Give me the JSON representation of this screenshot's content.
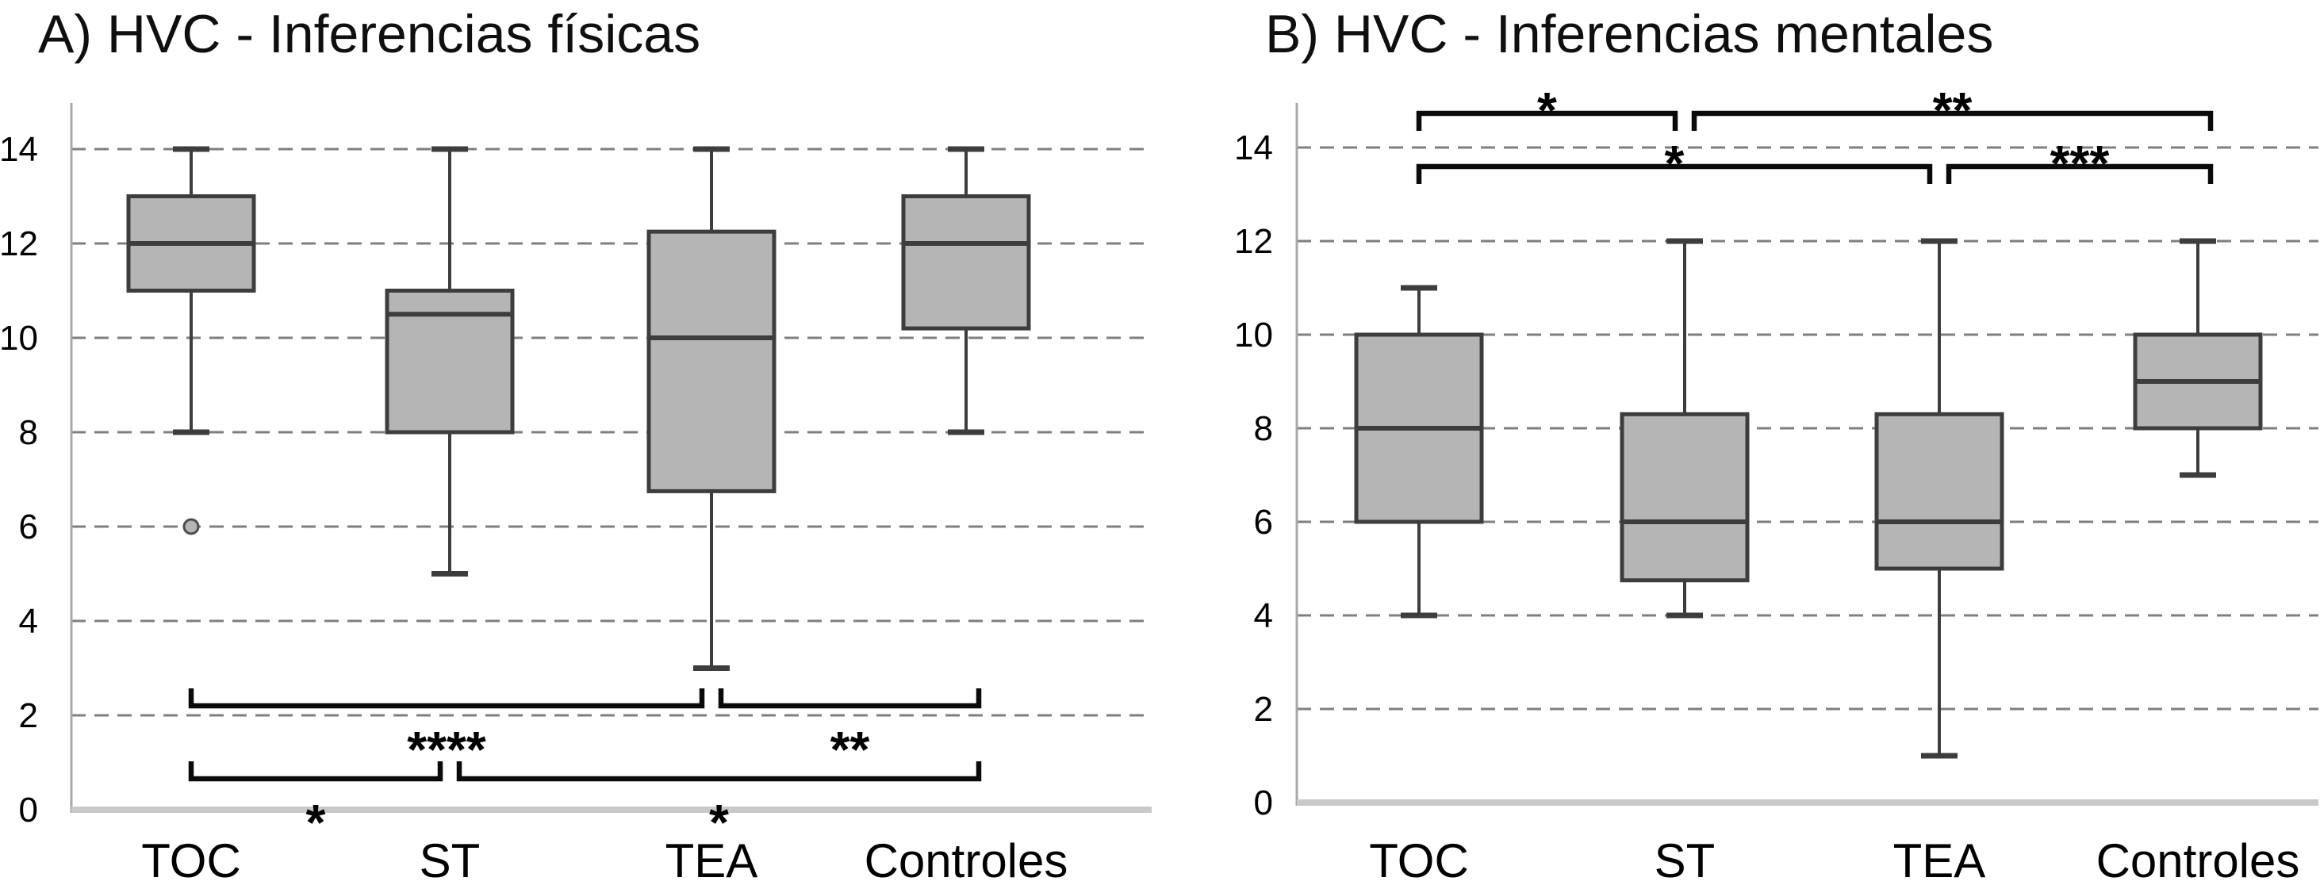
{
  "chart_data": [
    {
      "type": "box",
      "title": "A) HVC - Inferencias físicas",
      "categories": [
        "TOC",
        "ST",
        "TEA",
        "Controles"
      ],
      "xlabel": "",
      "ylabel": "",
      "ylim": [
        0,
        14
      ],
      "yticks": [
        0,
        2,
        4,
        6,
        8,
        10,
        12,
        14
      ],
      "grid": "horizontal-dashed",
      "boxes": [
        {
          "category": "TOC",
          "whisker_low": 8,
          "q1": 11,
          "median": 12,
          "q3": 13,
          "whisker_high": 14,
          "outliers": [
            6
          ]
        },
        {
          "category": "ST",
          "whisker_low": 5,
          "q1": 8,
          "median": 10.5,
          "q3": 11,
          "whisker_high": 14,
          "outliers": []
        },
        {
          "category": "TEA",
          "whisker_low": 3,
          "q1": 6.75,
          "median": 10,
          "q3": 12.25,
          "whisker_high": 14,
          "outliers": []
        },
        {
          "category": "Controles",
          "whisker_low": 8,
          "q1": 10.2,
          "median": 12,
          "q3": 13,
          "whisker_high": 14,
          "outliers": []
        }
      ],
      "significance_brackets": {
        "position": "below-boxes",
        "rows": [
          [
            {
              "from": "TOC",
              "to": "TEA",
              "label": "****"
            },
            {
              "from": "TEA",
              "to": "Controles",
              "label": "**"
            }
          ],
          [
            {
              "from": "TOC",
              "to": "ST",
              "label": "*"
            },
            {
              "from": "ST",
              "to": "Controles",
              "label": "*"
            }
          ]
        ]
      }
    },
    {
      "type": "box",
      "title": "B) HVC - Inferencias mentales",
      "categories": [
        "TOC",
        "ST",
        "TEA",
        "Controles"
      ],
      "xlabel": "",
      "ylabel": "",
      "ylim": [
        0,
        14
      ],
      "yticks": [
        0,
        2,
        4,
        6,
        8,
        10,
        12,
        14
      ],
      "grid": "horizontal-dashed",
      "boxes": [
        {
          "category": "TOC",
          "whisker_low": 4,
          "q1": 6,
          "median": 8,
          "q3": 10,
          "whisker_high": 11,
          "outliers": []
        },
        {
          "category": "ST",
          "whisker_low": 4,
          "q1": 4.75,
          "median": 6,
          "q3": 8.3,
          "whisker_high": 12,
          "outliers": []
        },
        {
          "category": "TEA",
          "whisker_low": 1,
          "q1": 5,
          "median": 6,
          "q3": 8.3,
          "whisker_high": 12,
          "outliers": []
        },
        {
          "category": "Controles",
          "whisker_low": 7,
          "q1": 8,
          "median": 9,
          "q3": 10,
          "whisker_high": 12,
          "outliers": []
        }
      ],
      "significance_brackets": {
        "position": "above-boxes",
        "rows": [
          [
            {
              "from": "TOC",
              "to": "ST",
              "label": "*"
            },
            {
              "from": "ST",
              "to": "Controles",
              "label": "**"
            }
          ],
          [
            {
              "from": "TOC",
              "to": "TEA",
              "label": "*"
            },
            {
              "from": "TEA",
              "to": "Controles",
              "label": "***"
            }
          ]
        ]
      }
    }
  ],
  "styles": {
    "background": "#ffffff",
    "box_fill": "#b5b5b5",
    "box_stroke": "#3d3d3d",
    "whisker_stroke": "#3d3d3d",
    "grid_color": "#7f7f7f",
    "axis_color": "#a8a8a8",
    "baseline_color": "#c9c9c9",
    "bracket_color": "#0a0a0a",
    "text_color": "#000000"
  }
}
